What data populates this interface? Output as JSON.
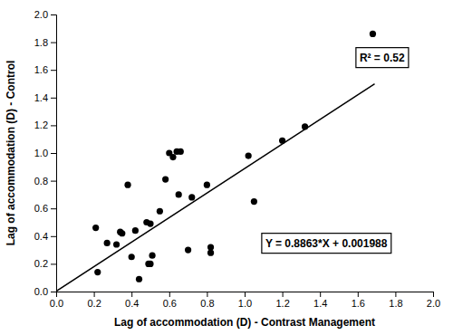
{
  "chart_data": {
    "type": "scatter",
    "xlabel": "Lag of accommodation (D) - Contrast Management",
    "ylabel": "Lag of accommodation (D) - Control",
    "series": [
      {
        "type": "scatter",
        "color": "black",
        "x": [
          0.21,
          0.22,
          0.27,
          0.32,
          0.34,
          0.35,
          0.38,
          0.4,
          0.42,
          0.44,
          0.48,
          0.49,
          0.5,
          0.5,
          0.51,
          0.55,
          0.58,
          0.6,
          0.62,
          0.64,
          0.65,
          0.66,
          0.7,
          0.72,
          0.8,
          0.82,
          0.82,
          1.02,
          1.05,
          1.2,
          1.32,
          1.68
        ],
        "values": [
          0.46,
          0.14,
          0.35,
          0.34,
          0.43,
          0.42,
          0.77,
          0.25,
          0.44,
          0.09,
          0.5,
          0.2,
          0.2,
          0.49,
          0.26,
          0.58,
          0.81,
          1.0,
          0.97,
          1.01,
          0.7,
          1.01,
          0.3,
          0.68,
          0.77,
          0.28,
          0.32,
          0.98,
          0.65,
          1.09,
          1.19,
          1.86
        ]
      },
      {
        "type": "line",
        "color": "black",
        "x": [
          0.0,
          1.69
        ],
        "values": [
          0.001988,
          1.499835
        ]
      }
    ],
    "annotations": [
      "R² = 0.52",
      "Y = 0.8863*X + 0.001988"
    ],
    "xlim": [
      0.0,
      2.0
    ],
    "ylim": [
      0.0,
      2.0
    ],
    "xticks": [
      {
        "value": 0.0,
        "label": "0.0"
      },
      0.2,
      0.4,
      0.6,
      0.8,
      {
        "value": 1.0,
        "label": "1.0"
      },
      1.2,
      1.4,
      1.6,
      1.8,
      {
        "value": 2.0,
        "label": "2.0"
      }
    ],
    "yticks": [
      {
        "value": 0.0,
        "label": "0.0"
      },
      0.2,
      0.4,
      0.6,
      0.8,
      {
        "value": 1.0,
        "label": "1.0"
      },
      1.2,
      1.4,
      1.6,
      1.8,
      {
        "value": 2.0,
        "label": "2.0"
      }
    ],
    "grid": false
  }
}
